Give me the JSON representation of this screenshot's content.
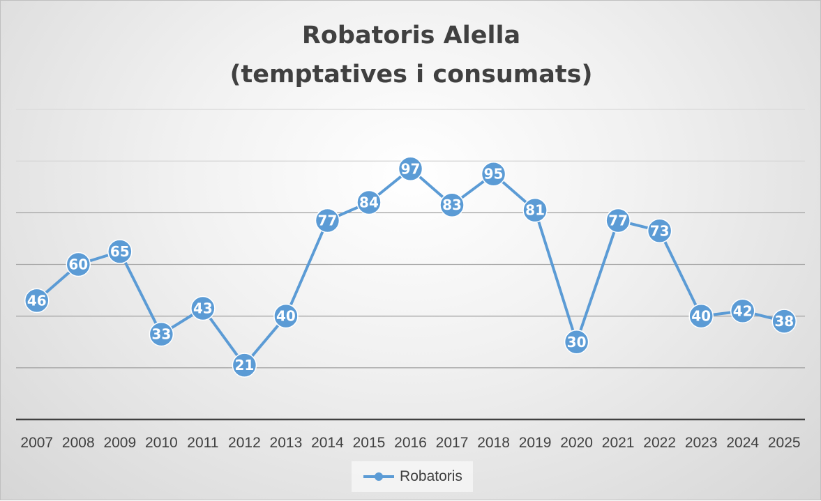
{
  "chart_data": {
    "type": "line",
    "title_lines": [
      "Robatoris Alella",
      "(temptatives i consumats)"
    ],
    "categories": [
      "2007",
      "2008",
      "2009",
      "2010",
      "2011",
      "2012",
      "2013",
      "2014",
      "2015",
      "2016",
      "2017",
      "2018",
      "2019",
      "2020",
      "2021",
      "2022",
      "2023",
      "2024",
      "2025"
    ],
    "series": [
      {
        "name": "Robatoris",
        "values": [
          46,
          60,
          65,
          33,
          43,
          21,
          40,
          77,
          84,
          97,
          83,
          95,
          81,
          30,
          77,
          73,
          40,
          42,
          38
        ],
        "color": "#5b9bd5"
      }
    ],
    "ylim": [
      0,
      120
    ],
    "y_gridlines": [
      20,
      40,
      60,
      80,
      100,
      120
    ],
    "y_tick_labels_visible": false,
    "data_labels": true,
    "grid": true,
    "legend": "bottom-center"
  }
}
